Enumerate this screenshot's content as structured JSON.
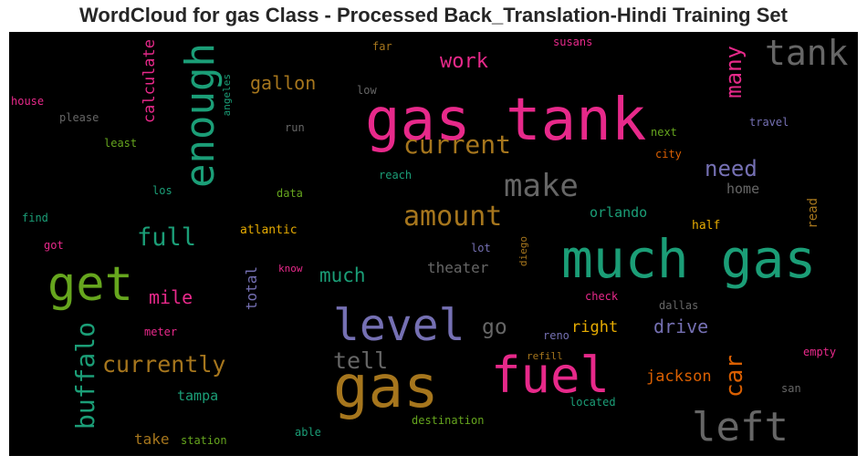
{
  "title": "WordCloud for gas Class - Processed Back_Translation-Hindi Training Set",
  "chart_data": {
    "type": "wordcloud",
    "words": [
      {
        "text": "gas tank",
        "weight": 100,
        "color": "#e7298a"
      },
      {
        "text": "much gas",
        "weight": 100,
        "color": "#1b9e77"
      },
      {
        "text": "gas",
        "weight": 100,
        "color": "#a6761d"
      },
      {
        "text": "fuel",
        "weight": 82,
        "color": "#e7298a"
      },
      {
        "text": "level",
        "weight": 78,
        "color": "#7570b3"
      },
      {
        "text": "get",
        "weight": 74,
        "color": "#66a61e"
      },
      {
        "text": "left",
        "weight": 72,
        "color": "#666666"
      },
      {
        "text": "enough",
        "weight": 68,
        "color": "#1b9e77"
      },
      {
        "text": "tank",
        "weight": 62,
        "color": "#666666"
      },
      {
        "text": "make",
        "weight": 52,
        "color": "#666666"
      },
      {
        "text": "current",
        "weight": 48,
        "color": "#a6761d"
      },
      {
        "text": "amount",
        "weight": 47,
        "color": "#a6761d"
      },
      {
        "text": "buffalo",
        "weight": 45,
        "color": "#1b9e77"
      },
      {
        "text": "car",
        "weight": 42,
        "color": "#d95f02"
      },
      {
        "text": "full",
        "weight": 40,
        "color": "#1b9e77"
      },
      {
        "text": "currently",
        "weight": 40,
        "color": "#a6761d"
      },
      {
        "text": "many",
        "weight": 38,
        "color": "#e7298a"
      },
      {
        "text": "tell",
        "weight": 38,
        "color": "#666666"
      },
      {
        "text": "need",
        "weight": 37,
        "color": "#7570b3"
      },
      {
        "text": "work",
        "weight": 33,
        "color": "#e7298a"
      },
      {
        "text": "much",
        "weight": 33,
        "color": "#1b9e77"
      },
      {
        "text": "go",
        "weight": 33,
        "color": "#666666"
      },
      {
        "text": "mile",
        "weight": 31,
        "color": "#e7298a"
      },
      {
        "text": "drive",
        "weight": 30,
        "color": "#7570b3"
      },
      {
        "text": "gallon",
        "weight": 29,
        "color": "#a6761d"
      },
      {
        "text": "jackson",
        "weight": 27,
        "color": "#d95f02"
      },
      {
        "text": "right",
        "weight": 27,
        "color": "#e6ab02"
      },
      {
        "text": "theater",
        "weight": 26,
        "color": "#666666"
      },
      {
        "text": "calculate",
        "weight": 26,
        "color": "#e7298a"
      },
      {
        "text": "orlando",
        "weight": 24,
        "color": "#1b9e77"
      },
      {
        "text": "take",
        "weight": 24,
        "color": "#a6761d"
      },
      {
        "text": "tampa",
        "weight": 23,
        "color": "#1b9e77"
      },
      {
        "text": "total",
        "weight": 23,
        "color": "#7570b3"
      },
      {
        "text": "home",
        "weight": 22,
        "color": "#666666"
      },
      {
        "text": "read",
        "weight": 22,
        "color": "#a6761d"
      },
      {
        "text": "half",
        "weight": 20,
        "color": "#e6ab02"
      },
      {
        "text": "atlantic",
        "weight": 20,
        "color": "#e6ab02"
      },
      {
        "text": "next",
        "weight": 19,
        "color": "#66a61e"
      },
      {
        "text": "city",
        "weight": 19,
        "color": "#d95f02"
      },
      {
        "text": "travel",
        "weight": 19,
        "color": "#7570b3"
      },
      {
        "text": "located",
        "weight": 19,
        "color": "#1b9e77"
      },
      {
        "text": "destination",
        "weight": 19,
        "color": "#66a61e"
      },
      {
        "text": "check",
        "weight": 19,
        "color": "#e7298a"
      },
      {
        "text": "dallas",
        "weight": 19,
        "color": "#666666"
      },
      {
        "text": "station",
        "weight": 18,
        "color": "#66a61e"
      },
      {
        "text": "angeles",
        "weight": 18,
        "color": "#1b9e77"
      },
      {
        "text": "please",
        "weight": 18,
        "color": "#666666"
      },
      {
        "text": "house",
        "weight": 18,
        "color": "#e7298a"
      },
      {
        "text": "least",
        "weight": 18,
        "color": "#66a61e"
      },
      {
        "text": "low",
        "weight": 18,
        "color": "#666666"
      },
      {
        "text": "run",
        "weight": 18,
        "color": "#666666"
      },
      {
        "text": "reach",
        "weight": 18,
        "color": "#1b9e77"
      },
      {
        "text": "data",
        "weight": 18,
        "color": "#66a61e"
      },
      {
        "text": "los",
        "weight": 18,
        "color": "#1b9e77"
      },
      {
        "text": "find",
        "weight": 18,
        "color": "#1b9e77"
      },
      {
        "text": "got",
        "weight": 18,
        "color": "#e7298a"
      },
      {
        "text": "know",
        "weight": 18,
        "color": "#e7298a"
      },
      {
        "text": "lot",
        "weight": 18,
        "color": "#7570b3"
      },
      {
        "text": "diego",
        "weight": 18,
        "color": "#a6761d"
      },
      {
        "text": "meter",
        "weight": 18,
        "color": "#e7298a"
      },
      {
        "text": "reno",
        "weight": 18,
        "color": "#7570b3"
      },
      {
        "text": "refill",
        "weight": 18,
        "color": "#a6761d"
      },
      {
        "text": "empty",
        "weight": 18,
        "color": "#e7298a"
      },
      {
        "text": "san",
        "weight": 18,
        "color": "#666666"
      },
      {
        "text": "able",
        "weight": 18,
        "color": "#1b9e77"
      },
      {
        "text": "far",
        "weight": 18,
        "color": "#a6761d"
      },
      {
        "text": "susans",
        "weight": 18,
        "color": "#e7298a"
      }
    ]
  }
}
